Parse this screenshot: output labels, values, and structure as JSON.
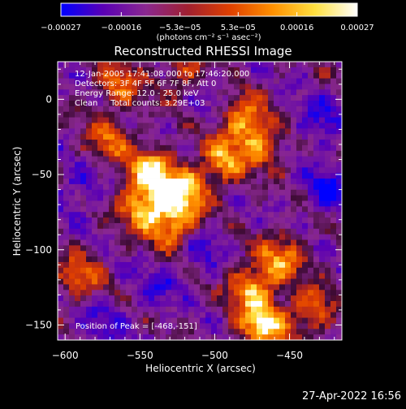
{
  "chart_data": {
    "type": "heatmap",
    "title": "Reconstructed RHESSI Image",
    "xlabel": "Heliocentric X (arcsec)",
    "ylabel": "Heliocentric Y (arcsec)",
    "xlim": [
      -605,
      -415
    ],
    "ylim": [
      -160,
      25
    ],
    "x_ticks": [
      -600,
      -550,
      -500,
      -450
    ],
    "y_ticks": [
      -150,
      -100,
      -50,
      0
    ],
    "x_tick_labels": [
      "−600",
      "−550",
      "−500",
      "−450"
    ],
    "y_tick_labels": [
      "−150",
      "−100",
      "−50",
      "0"
    ],
    "colorbar": {
      "range": [
        -0.00027,
        0.00027
      ],
      "ticks": [
        -0.00027,
        -0.00016,
        -5.3e-05,
        5.3e-05,
        0.00016,
        0.00027
      ],
      "tick_labels": [
        "−0.00027",
        "−0.00016",
        "−5.3e−05",
        "5.3e−05",
        "0.00016",
        "0.00027"
      ],
      "unit_label": "(photons cm⁻² s⁻¹ asec⁻²)",
      "colors": [
        "#0000ff",
        "#5a00b4",
        "#8a2890",
        "#a02030",
        "#e04000",
        "#ff9000",
        "#ffe040",
        "#ffffff"
      ]
    },
    "bright_sources": [
      {
        "x": -543,
        "y": -48,
        "level": 0.95
      },
      {
        "x": -522,
        "y": -62,
        "level": 1.0
      },
      {
        "x": -548,
        "y": -72,
        "level": 0.85
      },
      {
        "x": -528,
        "y": -85,
        "level": 0.8
      },
      {
        "x": -495,
        "y": -42,
        "level": 0.75
      },
      {
        "x": -482,
        "y": -12,
        "level": 0.7
      },
      {
        "x": -470,
        "y": -30,
        "level": 0.65
      },
      {
        "x": -563,
        "y": 10,
        "level": 0.6
      },
      {
        "x": -572,
        "y": -28,
        "level": 0.55
      },
      {
        "x": -468,
        "y": -151,
        "level": 1.0
      },
      {
        "x": -475,
        "y": -125,
        "level": 0.85
      },
      {
        "x": -455,
        "y": -105,
        "level": 0.7
      },
      {
        "x": -435,
        "y": -140,
        "level": 0.65
      },
      {
        "x": -590,
        "y": -118,
        "level": 0.6
      },
      {
        "x": -520,
        "y": 15,
        "level": 0.5
      }
    ],
    "dim_sources": [
      {
        "x": -425,
        "y": -60,
        "level": -0.7
      },
      {
        "x": -430,
        "y": -15,
        "level": -0.6
      },
      {
        "x": -510,
        "y": -100,
        "level": -0.55
      },
      {
        "x": -575,
        "y": -150,
        "level": -0.5
      },
      {
        "x": -590,
        "y": -60,
        "level": -0.5
      },
      {
        "x": -540,
        "y": -125,
        "level": -0.45
      },
      {
        "x": -505,
        "y": 5,
        "level": -0.4
      }
    ]
  },
  "overlay": {
    "time": "12-Jan-2005 17:41:08.000 to 17:46:20.000",
    "detectors": "Detectors: 3F 4F 5F 6F 7F 8F, Att 0",
    "energy": "Energy Range: 12.0 - 25.0 keV",
    "clean": "Clean     Total counts: 3.29E+03",
    "peak": "Position of Peak = [-468,-151]"
  },
  "footer": {
    "date": "27-Apr-2022 16:56"
  }
}
